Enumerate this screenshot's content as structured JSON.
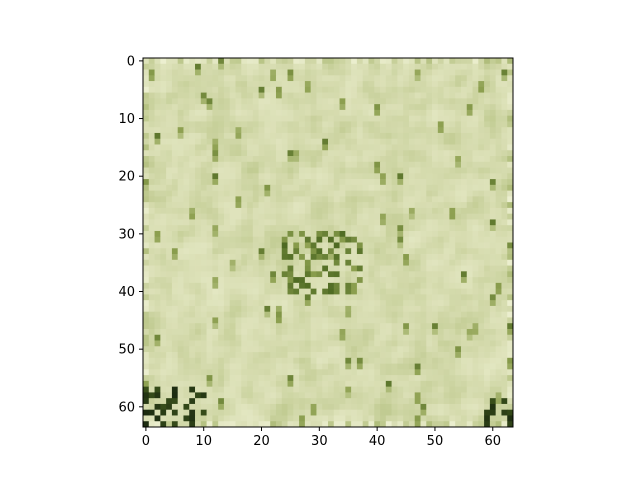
{
  "chart_data": {
    "type": "heatmap",
    "image_width": 64,
    "image_height": 64,
    "x_ticks": [
      0,
      10,
      20,
      30,
      40,
      50,
      60
    ],
    "y_ticks": [
      0,
      10,
      20,
      30,
      40,
      50,
      60
    ],
    "x_tick_labels": [
      "0",
      "10",
      "20",
      "30",
      "40",
      "50",
      "60"
    ],
    "y_tick_labels": [
      "0",
      "10",
      "20",
      "30",
      "40",
      "50",
      "60"
    ],
    "xlim": [
      -0.5,
      63.5
    ],
    "ylim": [
      63.5,
      -0.5
    ],
    "grid": false,
    "palette": {
      "cream": "#ecefd0",
      "pale": "#d9deb3",
      "light_green": "#b9c587",
      "mid_green": "#8c9f4f",
      "dark_green": "#4e6a22",
      "deep_shadow": "#1b2a10"
    },
    "dark_regions": [
      {
        "label": "bottom-left shadow",
        "x_range": [
          0,
          10
        ],
        "y_range": [
          57,
          63
        ],
        "color": "#1b2a10"
      },
      {
        "label": "bottom-right shadow",
        "x_range": [
          59,
          63
        ],
        "y_range": [
          59,
          63
        ],
        "color": "#1b2a10"
      },
      {
        "label": "center dark patch",
        "x_range": [
          24,
          37
        ],
        "y_range": [
          30,
          40
        ],
        "color": "#4e6a22"
      }
    ]
  }
}
